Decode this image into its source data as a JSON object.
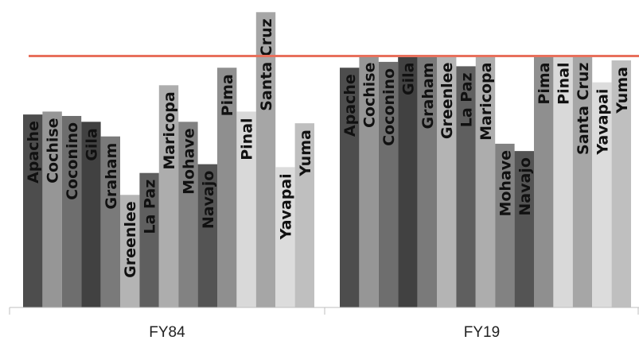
{
  "chart_data": {
    "type": "bar",
    "title": "",
    "xlabel": "",
    "ylabel": "",
    "ylim": [
      0,
      100
    ],
    "grid": false,
    "legend": "none",
    "groups": [
      {
        "label": "FY84",
        "bars": [
          {
            "name": "Apache",
            "value": 66,
            "color": "#4d4d4d"
          },
          {
            "name": "Cochise",
            "value": 67,
            "color": "#969696"
          },
          {
            "name": "Coconino",
            "value": 65.5,
            "color": "#6e6e6e"
          },
          {
            "name": "Gila",
            "value": 63.5,
            "color": "#414141"
          },
          {
            "name": "Graham",
            "value": 58.5,
            "color": "#7a7a7a"
          },
          {
            "name": "Greenlee",
            "value": 38.5,
            "color": "#b4b4b4"
          },
          {
            "name": "La Paz",
            "value": 46,
            "color": "#5f5f5f"
          },
          {
            "name": "Maricopa",
            "value": 76,
            "color": "#adadad"
          },
          {
            "name": "Mohave",
            "value": 63.5,
            "color": "#828282"
          },
          {
            "name": "Navajo",
            "value": 49,
            "color": "#545454"
          },
          {
            "name": "Pima",
            "value": 82,
            "color": "#8f8f8f"
          },
          {
            "name": "Pinal",
            "value": 67,
            "color": "#d9d9d9"
          },
          {
            "name": "Santa Cruz",
            "value": 101,
            "color": "#a6a6a6"
          },
          {
            "name": "Yavapai",
            "value": 48,
            "color": "#dcdcdc"
          },
          {
            "name": "Yuma",
            "value": 63,
            "color": "#bfbfbf"
          }
        ]
      },
      {
        "label": "FY19",
        "bars": [
          {
            "name": "Apache",
            "value": 82,
            "color": "#4d4d4d"
          },
          {
            "name": "Cochise",
            "value": 86,
            "color": "#969696"
          },
          {
            "name": "Coconino",
            "value": 84,
            "color": "#6e6e6e"
          },
          {
            "name": "Gila",
            "value": 86,
            "color": "#414141"
          },
          {
            "name": "Graham",
            "value": 86,
            "color": "#7a7a7a"
          },
          {
            "name": "Greenlee",
            "value": 86,
            "color": "#b4b4b4"
          },
          {
            "name": "La Paz",
            "value": 82.5,
            "color": "#5f5f5f"
          },
          {
            "name": "Maricopa",
            "value": 86,
            "color": "#adadad"
          },
          {
            "name": "Mohave",
            "value": 56,
            "color": "#828282"
          },
          {
            "name": "Navajo",
            "value": 53.5,
            "color": "#545454"
          },
          {
            "name": "Pima",
            "value": 86,
            "color": "#8f8f8f"
          },
          {
            "name": "Pinal",
            "value": 86,
            "color": "#d9d9d9"
          },
          {
            "name": "Santa Cruz",
            "value": 86,
            "color": "#a6a6a6"
          },
          {
            "name": "Yavapai",
            "value": 77,
            "color": "#dcdcdc"
          },
          {
            "name": "Yuma",
            "value": 84.5,
            "color": "#bfbfbf"
          }
        ]
      }
    ],
    "reference_line": {
      "value": 86,
      "color": "#e8705c"
    },
    "axis_color": "#bfbfbf"
  }
}
